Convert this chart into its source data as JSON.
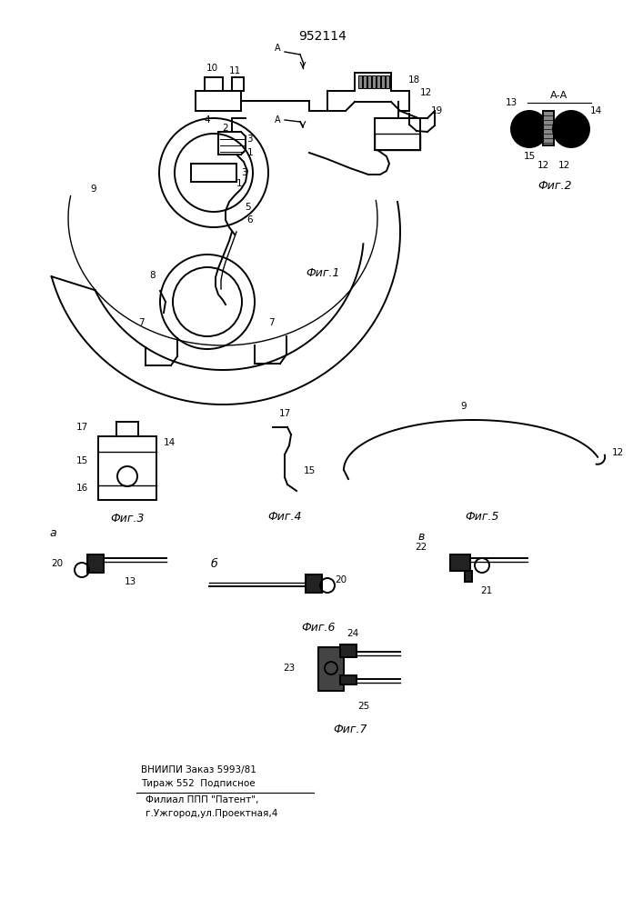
{
  "patent_number": "952114",
  "background_color": "#ffffff",
  "line_color": "#000000",
  "fig_width": 7.07,
  "fig_height": 10.0,
  "footer_line1": "ВНИИПИ Заказ 5993/81",
  "footer_line2": "Тираж 552  Подписное",
  "footer_line3": "Филиал ППП \"Патент\",",
  "footer_line4": "г.Ужгород,ул.Проектная,4",
  "fig1_label": "Фиг.1",
  "fig2_label": "Фиг.2",
  "fig3_label": "Фиг.3",
  "fig4_label": "Фиг.4",
  "fig5_label": "Фиг.5",
  "fig6_label": "Фиг.6",
  "fig7_label": "Фиг.7",
  "section_label": "А-А",
  "section_A_label": "А"
}
